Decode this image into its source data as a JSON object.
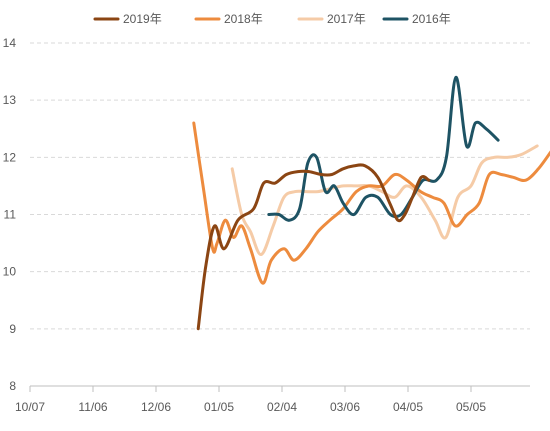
{
  "chart_data": {
    "type": "line",
    "title": "",
    "xlabel": "",
    "ylabel": "",
    "ylim": [
      8,
      14
    ],
    "yticks": [
      "8",
      "9",
      "10",
      "11",
      "12",
      "13",
      "14"
    ],
    "xticks": [
      "10/07",
      "11/06",
      "12/06",
      "01/05",
      "02/04",
      "03/06",
      "04/05",
      "05/05"
    ],
    "grid": "horizontal-dashed",
    "legend_position": "top",
    "series": [
      {
        "name": "2019年",
        "color": "#8B4513",
        "points": [
          [
            2.67,
            9.0
          ],
          [
            2.79,
            10.1
          ],
          [
            2.93,
            10.8
          ],
          [
            3.08,
            10.4
          ],
          [
            3.3,
            10.9
          ],
          [
            3.55,
            11.1
          ],
          [
            3.71,
            11.55
          ],
          [
            3.89,
            11.55
          ],
          [
            4.07,
            11.7
          ],
          [
            4.25,
            11.75
          ],
          [
            4.43,
            11.75
          ],
          [
            4.62,
            11.7
          ],
          [
            4.79,
            11.7
          ],
          [
            4.97,
            11.8
          ],
          [
            5.14,
            11.85
          ],
          [
            5.32,
            11.85
          ],
          [
            5.52,
            11.65
          ],
          [
            5.71,
            11.2
          ],
          [
            5.84,
            10.9
          ],
          [
            5.95,
            11.0
          ],
          [
            6.07,
            11.3
          ],
          [
            6.21,
            11.65
          ],
          [
            6.33,
            11.6
          ]
        ]
      },
      {
        "name": "2018年",
        "color": "#ED8B3E",
        "points": [
          [
            2.6,
            12.6
          ],
          [
            2.76,
            11.4
          ],
          [
            2.9,
            10.4
          ],
          [
            2.97,
            10.5
          ],
          [
            3.1,
            10.9
          ],
          [
            3.23,
            10.6
          ],
          [
            3.36,
            10.8
          ],
          [
            3.5,
            10.4
          ],
          [
            3.69,
            9.8
          ],
          [
            3.83,
            10.2
          ],
          [
            4.03,
            10.4
          ],
          [
            4.19,
            10.2
          ],
          [
            4.38,
            10.4
          ],
          [
            4.57,
            10.7
          ],
          [
            4.76,
            10.9
          ],
          [
            4.97,
            11.1
          ],
          [
            5.18,
            11.4
          ],
          [
            5.38,
            11.5
          ],
          [
            5.59,
            11.5
          ],
          [
            5.79,
            11.7
          ],
          [
            5.98,
            11.6
          ],
          [
            6.2,
            11.4
          ],
          [
            6.39,
            11.3
          ],
          [
            6.57,
            11.2
          ],
          [
            6.75,
            10.8
          ],
          [
            6.94,
            11.0
          ],
          [
            7.13,
            11.2
          ],
          [
            7.29,
            11.7
          ],
          [
            7.48,
            11.7
          ],
          [
            7.67,
            11.65
          ],
          [
            7.87,
            11.6
          ],
          [
            8.07,
            11.8
          ],
          [
            8.27,
            12.1
          ]
        ]
      },
      {
        "name": "2017年",
        "color": "#F5CBA7",
        "points": [
          [
            3.21,
            11.8
          ],
          [
            3.36,
            11.0
          ],
          [
            3.5,
            10.7
          ],
          [
            3.67,
            10.3
          ],
          [
            3.86,
            10.8
          ],
          [
            4.03,
            11.3
          ],
          [
            4.21,
            11.4
          ],
          [
            4.38,
            11.4
          ],
          [
            4.57,
            11.4
          ],
          [
            4.76,
            11.45
          ],
          [
            4.97,
            11.5
          ],
          [
            5.17,
            11.5
          ],
          [
            5.38,
            11.5
          ],
          [
            5.59,
            11.4
          ],
          [
            5.79,
            11.3
          ],
          [
            5.98,
            11.5
          ],
          [
            6.21,
            11.3
          ],
          [
            6.43,
            10.9
          ],
          [
            6.6,
            10.6
          ],
          [
            6.79,
            11.3
          ],
          [
            7.0,
            11.5
          ],
          [
            7.17,
            11.9
          ],
          [
            7.37,
            12.0
          ],
          [
            7.59,
            12.0
          ],
          [
            7.8,
            12.05
          ],
          [
            8.05,
            12.2
          ]
        ]
      },
      {
        "name": "2016年",
        "color": "#1E5364",
        "points": [
          [
            3.79,
            11.0
          ],
          [
            3.95,
            11.0
          ],
          [
            4.12,
            10.9
          ],
          [
            4.28,
            11.1
          ],
          [
            4.41,
            11.9
          ],
          [
            4.55,
            12.0
          ],
          [
            4.69,
            11.4
          ],
          [
            4.83,
            11.5
          ],
          [
            4.97,
            11.2
          ],
          [
            5.14,
            11.0
          ],
          [
            5.33,
            11.3
          ],
          [
            5.52,
            11.3
          ],
          [
            5.72,
            11.0
          ],
          [
            5.89,
            11.0
          ],
          [
            6.07,
            11.3
          ],
          [
            6.24,
            11.6
          ],
          [
            6.45,
            11.6
          ],
          [
            6.61,
            12.0
          ],
          [
            6.76,
            13.4
          ],
          [
            6.93,
            12.2
          ],
          [
            7.07,
            12.6
          ],
          [
            7.24,
            12.5
          ],
          [
            7.43,
            12.3
          ]
        ]
      }
    ]
  }
}
